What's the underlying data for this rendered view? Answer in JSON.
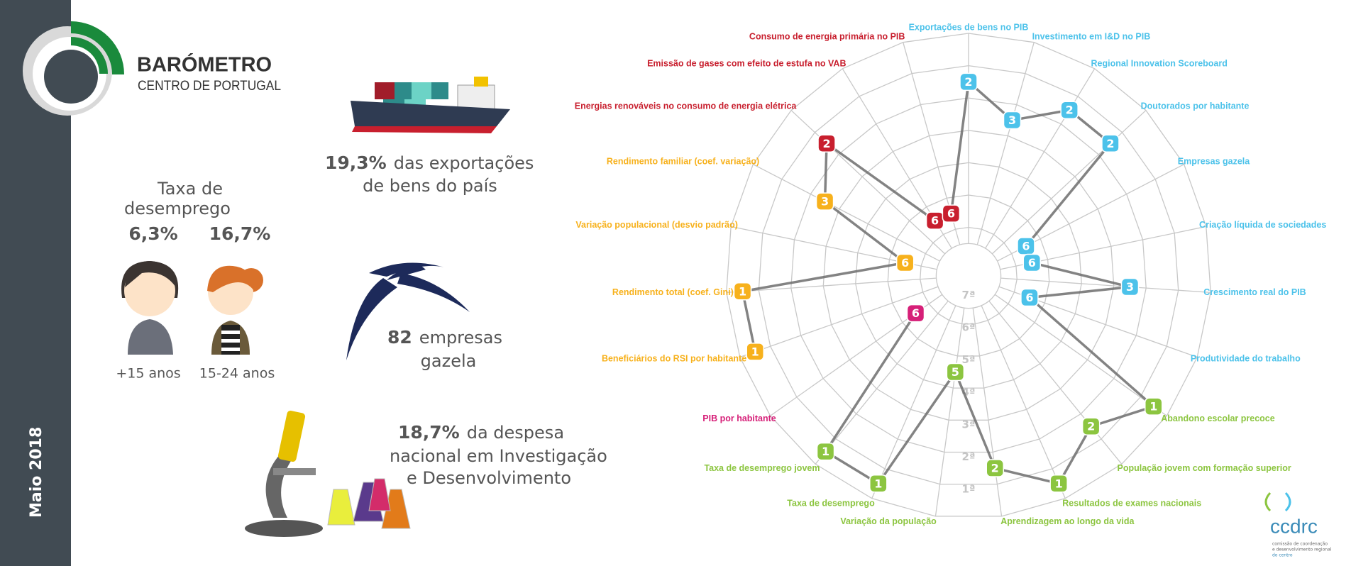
{
  "header": {
    "title": "BARÓMETRO",
    "subtitle": "CENTRO DE PORTUGAL"
  },
  "sidebar": {
    "date": "Maio 2018"
  },
  "unemployment": {
    "title_lines": [
      "Taxa de",
      "desemprego"
    ],
    "groups": [
      {
        "value": "6,3%",
        "age": "+15 anos"
      },
      {
        "value": "16,7%",
        "age": "15-24 anos"
      }
    ]
  },
  "exports": {
    "value": "19,3%",
    "lines": [
      "das exportações",
      "de bens do país"
    ]
  },
  "gazelle": {
    "value": "82",
    "lines": [
      "empresas",
      "gazela"
    ]
  },
  "research": {
    "value": "18,7%",
    "lines": [
      "da despesa",
      "nacional em Investigação",
      "e Desenvolvimento"
    ]
  },
  "footer_logo": {
    "name": "ccdrc",
    "lines": [
      "comissão de coordenação",
      "e desenvolvimento regional",
      "do centro"
    ]
  },
  "chart_data": {
    "type": "radar",
    "categories": [
      "Exportações de bens no PIB",
      "Investimento em I&D no PIB",
      "Regional Innovation Scoreboard",
      "Doutorados por habitante",
      "Empresas gazela",
      "Criação líquida de sociedades",
      "Crescimento real do PIB",
      "Produtividade do trabalho",
      "Abandono escolar precoce",
      "População jovem com formação superior",
      "Resultados de exames nacionais",
      "Aprendizagem ao longo da vida",
      "Variação da população",
      "Taxa de desemprego",
      "Taxa de desemprego jovem",
      "PIB por habitante",
      "Beneficiários do RSI por habitante",
      "Rendimento total (coef. Gini)",
      "Variação populacional (desvio padrão)",
      "Rendimento familiar (coef. variação)",
      "Energias renováveis no consumo de energia elétrica",
      "Emissão de gases com efeito de estufa no VAB",
      "Consumo de energia primária no PIB"
    ],
    "values": [
      2,
      3,
      2,
      2,
      6,
      6,
      3,
      6,
      1,
      2,
      1,
      2,
      5,
      1,
      1,
      6,
      1,
      1,
      6,
      3,
      2,
      6,
      6
    ],
    "colors": [
      "#4cc2ea",
      "#4cc2ea",
      "#4cc2ea",
      "#4cc2ea",
      "#4cc2ea",
      "#4cc2ea",
      "#4cc2ea",
      "#4cc2ea",
      "#8cc540",
      "#8cc540",
      "#8cc540",
      "#8cc540",
      "#8cc540",
      "#8cc540",
      "#8cc540",
      "#d61f78",
      "#f7b11c",
      "#f7b11c",
      "#f7b11c",
      "#f7b11c",
      "#c81f2e",
      "#c81f2e",
      "#c81f2e"
    ],
    "rlim": [
      8,
      0.5
    ],
    "rticks": [
      {
        "value": 1,
        "label": "1ª"
      },
      {
        "value": 2,
        "label": "2ª"
      },
      {
        "value": 3,
        "label": "3ª"
      },
      {
        "value": 4,
        "label": "4ª"
      },
      {
        "value": 5,
        "label": "5ª"
      },
      {
        "value": 6,
        "label": "6ª"
      },
      {
        "value": 7,
        "label": "7ª"
      }
    ],
    "grid": true
  }
}
